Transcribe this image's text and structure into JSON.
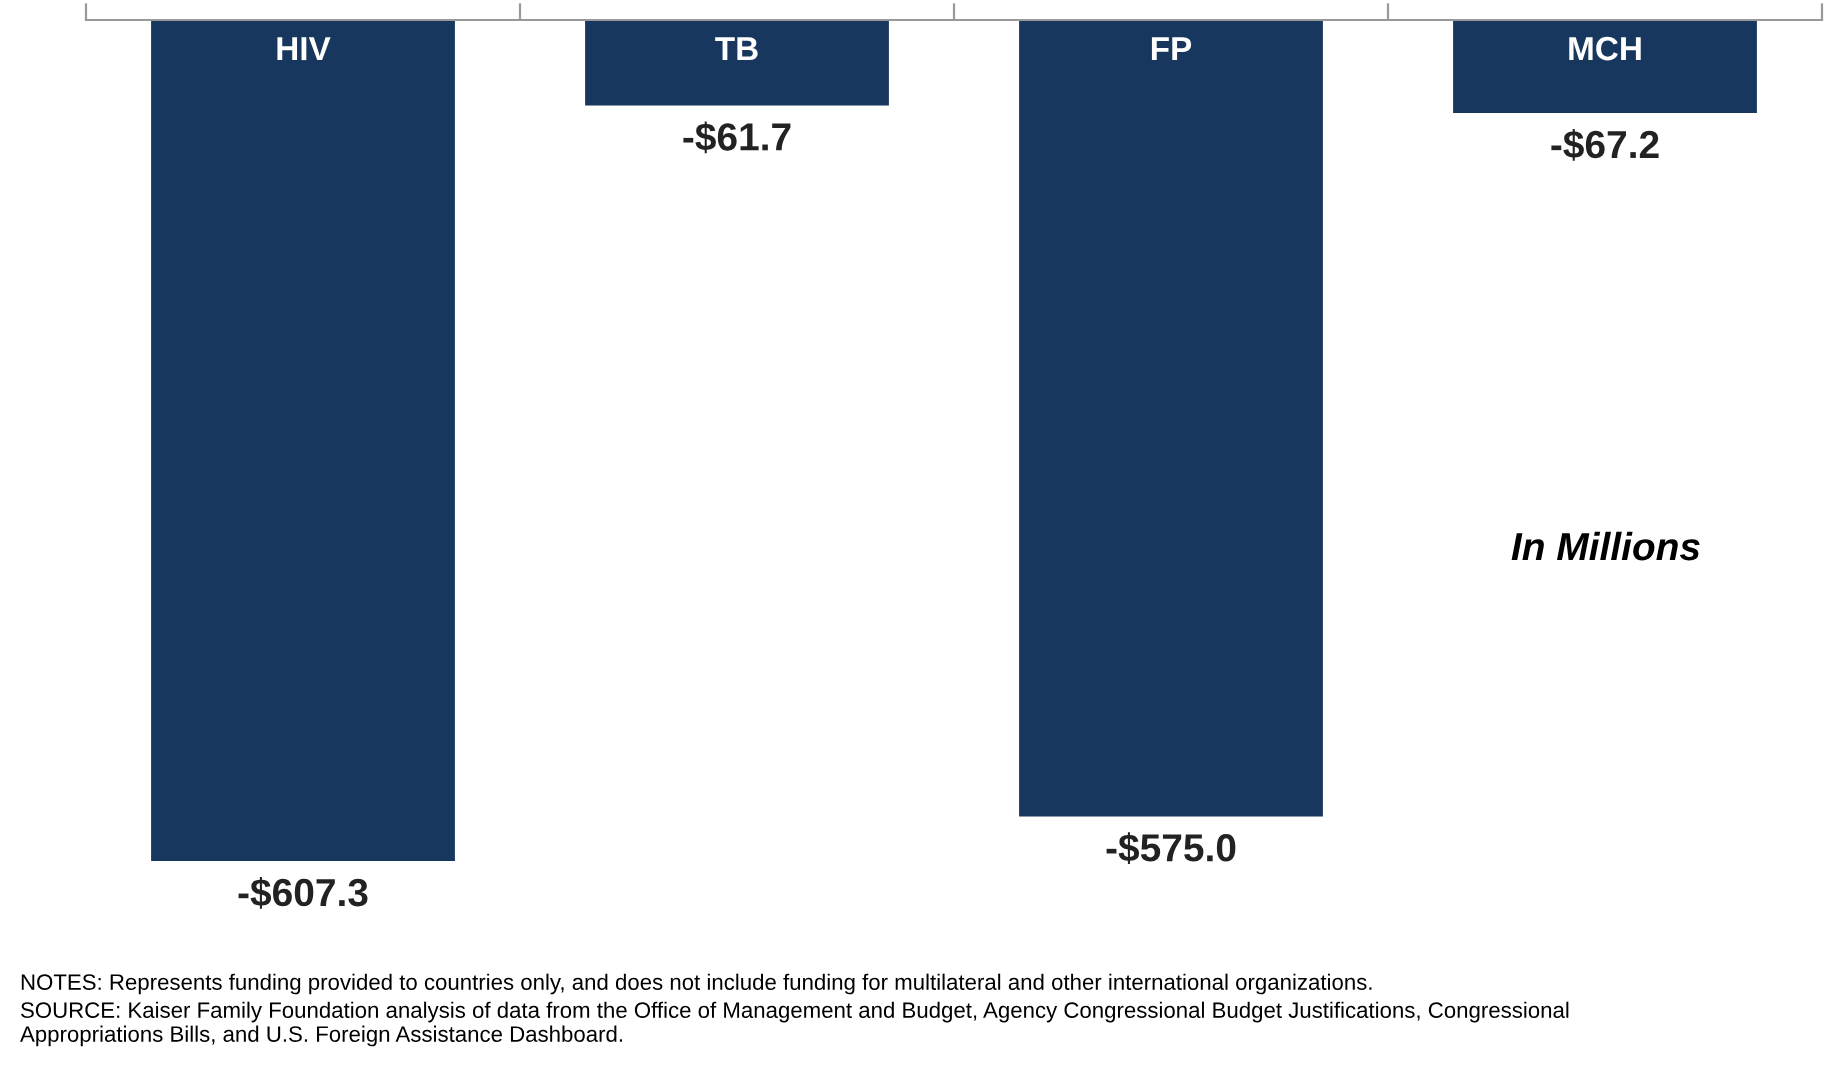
{
  "chart_data": {
    "type": "bar",
    "categories": [
      "HIV",
      "TB",
      "FP",
      "MCH"
    ],
    "values": [
      -607.3,
      -61.7,
      -575.0,
      -67.2
    ],
    "value_labels": [
      "-$607.3",
      "-$61.7",
      "-$575.0",
      "-$67.2"
    ],
    "color": "#17375e",
    "tick_labels": "x",
    "grid": false,
    "legend": false,
    "annotations": [
      "In Millions",
      "NOTES: Represents funding provided to countries only, and does not include funding for multilateral and other international organizations.",
      "SOURCE: Kaiser Family Foundation analysis of data from the Office of Management and Budget, Agency Congressional Budget Justifications, Congressional\nAppropriations Bills, and U.S. Foreign Assistance Dashboard."
    ]
  }
}
